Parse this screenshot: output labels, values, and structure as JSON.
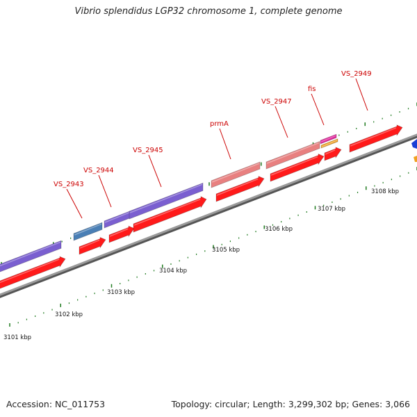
{
  "title": "Vibrio splendidus LGP32 chromosome 1, complete genome",
  "accession": "Accession: NC_011753",
  "summary": "Topology: circular; Length: 3,299,302 bp; Genes: 3,066",
  "gene_labels": [
    "VS_2943",
    "VS_2944",
    "VS_2945",
    "prmA",
    "VS_2947",
    "fis",
    "VS_2949"
  ],
  "kbp_labels": [
    "3101 kbp",
    "3102 kbp",
    "3103 kbp",
    "3104 kbp",
    "3105 kbp",
    "3106 kbp",
    "3107 kbp",
    "3108 kbp"
  ],
  "colors": {
    "cds": "#ff1a1a",
    "cds_dark": "#b30000",
    "blue_feature": "#4a7fb5",
    "purple_feature": "#7a5fd0",
    "pink_feature": "#e88080",
    "magenta_feature": "#e0259a",
    "orange_feature": "#f0a020",
    "backbone": "#8a8a8a",
    "tick": "#1e7a1e",
    "label_red": "#cc0000"
  }
}
